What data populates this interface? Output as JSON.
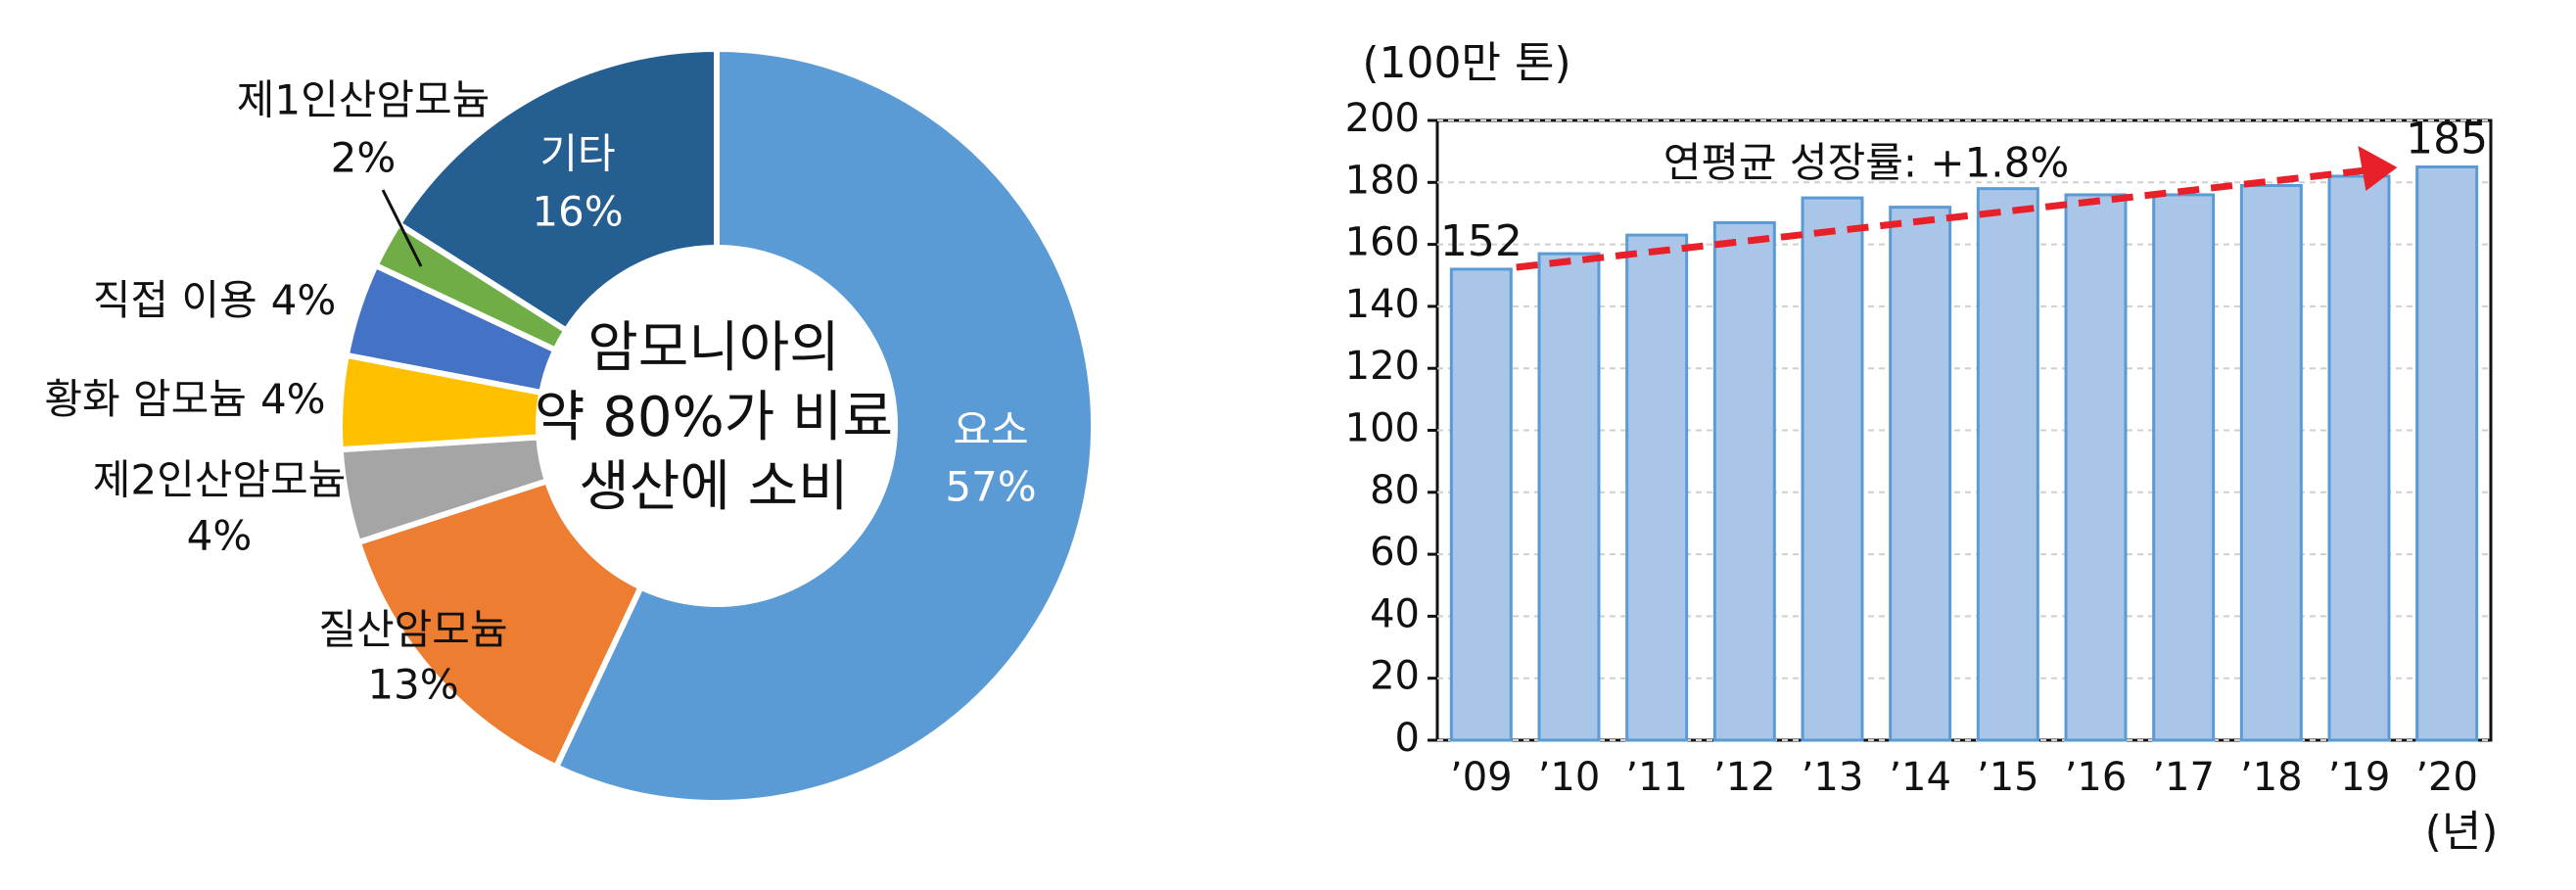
{
  "chart_data": [
    {
      "type": "pie",
      "categories": [
        "요소",
        "질산암모늄",
        "제2인산암모늄",
        "황화 암모늄",
        "직접 이용",
        "제1인산암모늄",
        "기타"
      ],
      "values": [
        57,
        13,
        4,
        4,
        4,
        2,
        16
      ],
      "value_labels": [
        "57%",
        "13%",
        "4%",
        "4%",
        "4%",
        "2%",
        "16%"
      ],
      "colors": [
        "#5b9bd5",
        "#ed7d31",
        "#a5a5a5",
        "#ffc000",
        "#4472c4",
        "#70ad47",
        "#255e91"
      ],
      "center_text": [
        "암모니아의",
        "약 80%가 비료",
        "생산에 소비"
      ]
    },
    {
      "type": "bar",
      "y_label": "(100만 톤)",
      "x_label": "(년)",
      "annotation": "연평균 성장률: +1.8%",
      "categories": [
        "’09",
        "’10",
        "’11",
        "’12",
        "’13",
        "’14",
        "’15",
        "’16",
        "’17",
        "’18",
        "’19",
        "’20"
      ],
      "values": [
        152,
        157,
        163,
        167,
        175,
        172,
        178,
        176,
        176,
        179,
        182,
        185
      ],
      "value_labels": [
        "152",
        null,
        null,
        null,
        null,
        null,
        null,
        null,
        null,
        null,
        null,
        "185"
      ],
      "color": "#a9c6e8",
      "edge_color": "#5b9bd5",
      "arrow_color": "#e8202a",
      "ylim": [
        0,
        200
      ],
      "yticks": [
        0,
        20,
        40,
        60,
        80,
        100,
        120,
        140,
        160,
        180,
        200
      ],
      "grid": true
    }
  ]
}
